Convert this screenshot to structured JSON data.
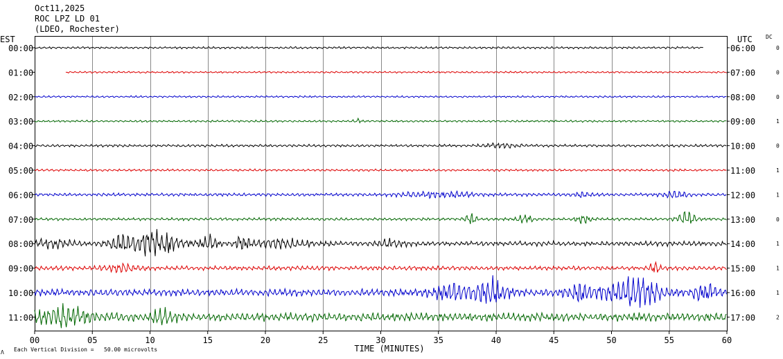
{
  "header": {
    "date": "Oct11,2025",
    "station": "ROC LPZ LD 01",
    "network": "(LDEO, Rochester)"
  },
  "labels": {
    "left_tz": "EST",
    "right_tz": "UTC",
    "dc": "DC",
    "x_title": "TIME (MINUTES)",
    "scale_note": "Each Vertical Division =   50.00 microvolts",
    "scale_glyph": "Λ"
  },
  "chart_data": {
    "type": "line",
    "title": "",
    "xlabel": "TIME (MINUTES)",
    "ylabel": "",
    "xlim": [
      0,
      60
    ],
    "x_ticks": [
      "00",
      "05",
      "10",
      "15",
      "20",
      "25",
      "30",
      "35",
      "40",
      "45",
      "50",
      "55",
      "60"
    ],
    "grid": true,
    "colors": [
      "#000000",
      "#dd0000",
      "#0000cc",
      "#006600"
    ],
    "rows": [
      {
        "est": "00:00",
        "utc": "06:00",
        "dc": "0",
        "color": "#000000",
        "start_min": 0,
        "end_min": 58,
        "base_amp": 1.5,
        "events": []
      },
      {
        "est": "01:00",
        "utc": "07:00",
        "dc": "0",
        "color": "#dd0000",
        "start_min": 2.7,
        "end_min": 60,
        "base_amp": 1.3,
        "events": []
      },
      {
        "est": "02:00",
        "utc": "08:00",
        "dc": "0",
        "color": "#0000cc",
        "start_min": 0,
        "end_min": 60,
        "base_amp": 1.3,
        "events": []
      },
      {
        "est": "03:00",
        "utc": "09:00",
        "dc": "1",
        "color": "#006600",
        "start_min": 0,
        "end_min": 60,
        "base_amp": 1.4,
        "events": [
          {
            "t": 28,
            "amp": 2.5,
            "dur": 0.6
          }
        ]
      },
      {
        "est": "04:00",
        "utc": "10:00",
        "dc": "0",
        "color": "#000000",
        "start_min": 0,
        "end_min": 60,
        "base_amp": 1.8,
        "events": [
          {
            "t": 40.5,
            "amp": 3.5,
            "dur": 3
          }
        ]
      },
      {
        "est": "05:00",
        "utc": "11:00",
        "dc": "1",
        "color": "#dd0000",
        "start_min": 0,
        "end_min": 60,
        "base_amp": 1.6,
        "events": []
      },
      {
        "est": "06:00",
        "utc": "12:00",
        "dc": "1",
        "color": "#0000cc",
        "start_min": 0,
        "end_min": 60,
        "base_amp": 2.2,
        "events": [
          {
            "t": 35,
            "amp": 4,
            "dur": 6
          },
          {
            "t": 47.5,
            "amp": 4,
            "dur": 1.5
          },
          {
            "t": 55.5,
            "amp": 4,
            "dur": 2.5
          }
        ]
      },
      {
        "est": "07:00",
        "utc": "13:00",
        "dc": "0",
        "color": "#006600",
        "start_min": 0,
        "end_min": 60,
        "base_amp": 2,
        "events": [
          {
            "t": 37.8,
            "amp": 9,
            "dur": 0.8
          },
          {
            "t": 42.5,
            "amp": 6,
            "dur": 1.2
          },
          {
            "t": 47.5,
            "amp": 6,
            "dur": 1.2
          },
          {
            "t": 56.5,
            "amp": 11,
            "dur": 1.5
          }
        ]
      },
      {
        "est": "08:00",
        "utc": "14:00",
        "dc": "1",
        "color": "#000000",
        "start_min": 0,
        "end_min": 60,
        "base_amp": 3.5,
        "events": [
          {
            "t": 1.5,
            "amp": 6,
            "dur": 3
          },
          {
            "t": 7.5,
            "amp": 9,
            "dur": 2
          },
          {
            "t": 10.5,
            "amp": 18,
            "dur": 4
          },
          {
            "t": 15,
            "amp": 10,
            "dur": 1.5
          },
          {
            "t": 18,
            "amp": 12,
            "dur": 1.2
          },
          {
            "t": 21.5,
            "amp": 6,
            "dur": 4
          },
          {
            "t": 31,
            "amp": 5,
            "dur": 2
          }
        ]
      },
      {
        "est": "09:00",
        "utc": "15:00",
        "dc": "1",
        "color": "#dd0000",
        "start_min": 0,
        "end_min": 60,
        "base_amp": 3,
        "events": [
          {
            "t": 7.5,
            "amp": 5,
            "dur": 3
          },
          {
            "t": 53.8,
            "amp": 9,
            "dur": 0.8
          }
        ]
      },
      {
        "est": "10:00",
        "utc": "16:00",
        "dc": "1",
        "color": "#0000cc",
        "start_min": 0,
        "end_min": 60,
        "base_amp": 5,
        "events": [
          {
            "t": 36,
            "amp": 10,
            "dur": 3
          },
          {
            "t": 39.5,
            "amp": 18,
            "dur": 3
          },
          {
            "t": 47.5,
            "amp": 14,
            "dur": 2.5
          },
          {
            "t": 52,
            "amp": 24,
            "dur": 4
          },
          {
            "t": 58,
            "amp": 12,
            "dur": 2
          }
        ]
      },
      {
        "est": "11:00",
        "utc": "17:00",
        "dc": "2",
        "color": "#006600",
        "start_min": 0,
        "end_min": 60,
        "base_amp": 6,
        "events": [
          {
            "t": 2.5,
            "amp": 14,
            "dur": 4
          },
          {
            "t": 11,
            "amp": 9,
            "dur": 2
          }
        ]
      }
    ]
  }
}
